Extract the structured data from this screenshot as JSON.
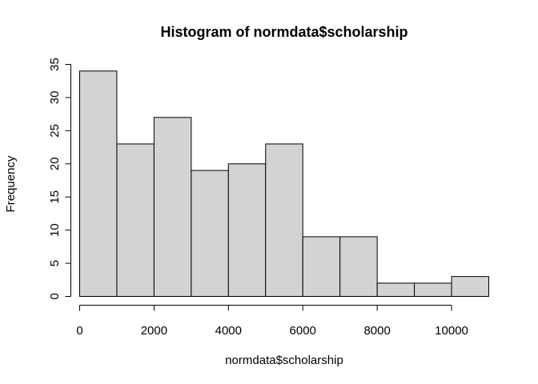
{
  "chart_data": {
    "type": "bar",
    "title": "Histogram of normdata$scholarship",
    "xlabel": "normdata$scholarship",
    "ylabel": "Frequency",
    "bins": [
      {
        "start": 0,
        "end": 1000,
        "count": 34
      },
      {
        "start": 1000,
        "end": 2000,
        "count": 23
      },
      {
        "start": 2000,
        "end": 3000,
        "count": 27
      },
      {
        "start": 3000,
        "end": 4000,
        "count": 19
      },
      {
        "start": 4000,
        "end": 5000,
        "count": 20
      },
      {
        "start": 5000,
        "end": 6000,
        "count": 23
      },
      {
        "start": 6000,
        "end": 7000,
        "count": 9
      },
      {
        "start": 7000,
        "end": 8000,
        "count": 9
      },
      {
        "start": 8000,
        "end": 9000,
        "count": 2
      },
      {
        "start": 9000,
        "end": 10000,
        "count": 2
      },
      {
        "start": 10000,
        "end": 11000,
        "count": 3
      }
    ],
    "xlim": [
      0,
      11000
    ],
    "ylim": [
      0,
      35
    ],
    "xticks": [
      0,
      2000,
      4000,
      6000,
      8000,
      10000
    ],
    "yticks": [
      0,
      5,
      10,
      15,
      20,
      25,
      30,
      35
    ],
    "bar_color": "#d3d3d3",
    "edge_color": "#000000",
    "grid": false
  }
}
